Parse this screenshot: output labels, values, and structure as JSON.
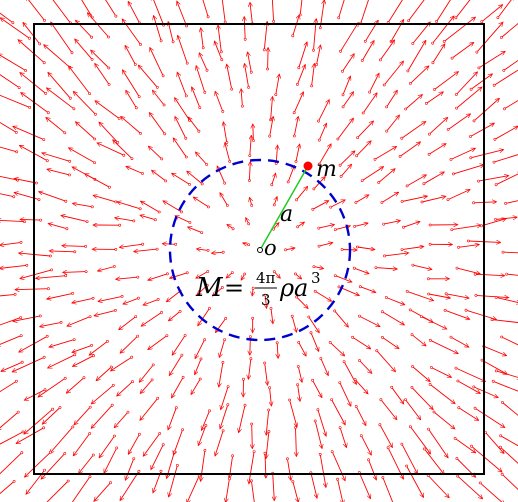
{
  "labels": {
    "mass": "m",
    "radius": "a",
    "origin": "o",
    "formula_lhs": "M",
    "formula_eq": "=",
    "formula_num": "4π",
    "formula_den": "3",
    "formula_rhs_rho": "ρ",
    "formula_rhs_a": "a",
    "formula_exp": "3"
  },
  "colors": {
    "frame": "#000000",
    "arrows": "#ff0000",
    "sphere": "#0000cc",
    "radius_line": "#22cc22",
    "mass_point": "#ff0000"
  },
  "field": {
    "direction": "radial-outward",
    "inside_sphere": "short arrows, magnitude grows with distance",
    "outside_sphere": "longer arrows"
  }
}
